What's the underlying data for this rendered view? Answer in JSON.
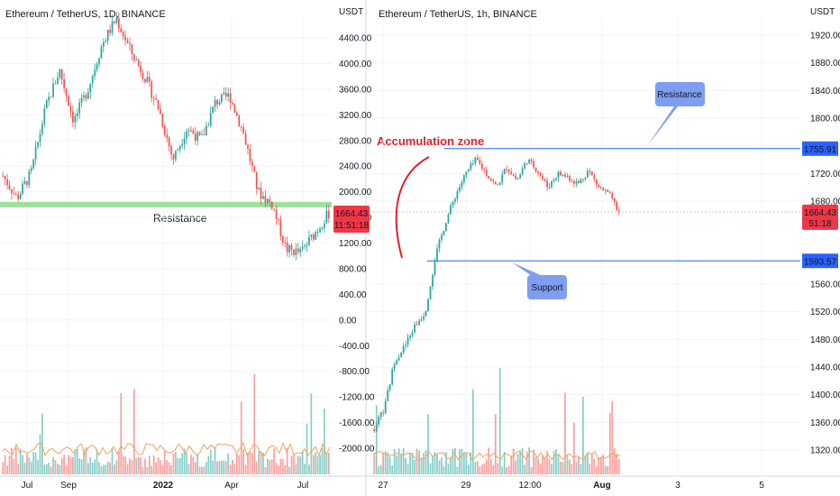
{
  "colors": {
    "up": "#26a69a",
    "down": "#ef5350",
    "resistance_band": "#9be29b",
    "level_line": "#2962ff",
    "price_badge": "#f23645",
    "callout": "#7f9ef2",
    "annotation": "#e0202a",
    "grid": "#f0f3fa",
    "volume_ma": "#f5a25a"
  },
  "left_panel": {
    "title": "Ethereum / TetherUS, 1D, BINANCE",
    "axis_unit": "USDT",
    "price_ticks": [
      "4400.00",
      "4000.00",
      "3600.00",
      "3200.00",
      "2800.00",
      "2400.00",
      "2000.00",
      "1600.00",
      "1200.00",
      "800.00",
      "400.00",
      "0.00",
      "-400.00",
      "-800.00",
      "-1200.00",
      "-1600.00",
      "-2000.00"
    ],
    "time_ticks": [
      "Jul",
      "Sep",
      "2022",
      "Apr",
      "Jul"
    ],
    "resistance_label": "Resistance",
    "last_price": "1664.43",
    "countdown": "11:51:18"
  },
  "right_panel": {
    "title": "Ethereum / TetherUS, 1h, BINANCE",
    "axis_unit": "USDT",
    "price_ticks": [
      "1920.00",
      "1880.00",
      "1840.00",
      "1800.00",
      "1720.00",
      "1680.00",
      "1560.00",
      "1520.00",
      "1480.00",
      "1440.00",
      "1400.00",
      "1360.00",
      "1320.00"
    ],
    "time_ticks": [
      "27",
      "29",
      "12:00",
      "Aug",
      "3",
      "5"
    ],
    "resistance_level": "1755.91",
    "support_level": "1593.57",
    "last_price": "1664.43",
    "countdown": "51:18",
    "accumulation_label": "Accumulation zone",
    "resistance_callout": "Resistance",
    "support_callout": "Support"
  },
  "chart_data": [
    {
      "type": "candlestick",
      "title": "Ethereum / TetherUS, 1D, BINANCE",
      "ylabel": "USDT",
      "ylim": [
        -2200,
        4900
      ],
      "x_ticks": [
        "Jul",
        "Sep",
        "2022",
        "Apr",
        "Jul"
      ],
      "close_path_approx": [
        2250,
        1900,
        2300,
        3300,
        3900,
        3100,
        3600,
        4300,
        4700,
        4200,
        3800,
        3300,
        2500,
        3000,
        2800,
        3400,
        3500,
        2900,
        2000,
        1800,
        1100,
        1050,
        1350,
        1664
      ],
      "resistance_level": 1800,
      "last_price": 1664.43
    },
    {
      "type": "candlestick",
      "title": "Ethereum / TetherUS, 1h, BINANCE",
      "ylabel": "USDT",
      "ylim": [
        1300,
        1940
      ],
      "x_ticks": [
        "27",
        "29",
        "12:00",
        "Aug",
        "3",
        "5"
      ],
      "close_path_approx": [
        1350,
        1380,
        1450,
        1470,
        1500,
        1520,
        1600,
        1650,
        1690,
        1720,
        1740,
        1720,
        1700,
        1730,
        1710,
        1740,
        1725,
        1700,
        1720,
        1715,
        1705,
        1725,
        1700,
        1690,
        1664
      ],
      "resistance_level": 1755.91,
      "support_level": 1593.57,
      "last_price": 1664.43
    }
  ]
}
